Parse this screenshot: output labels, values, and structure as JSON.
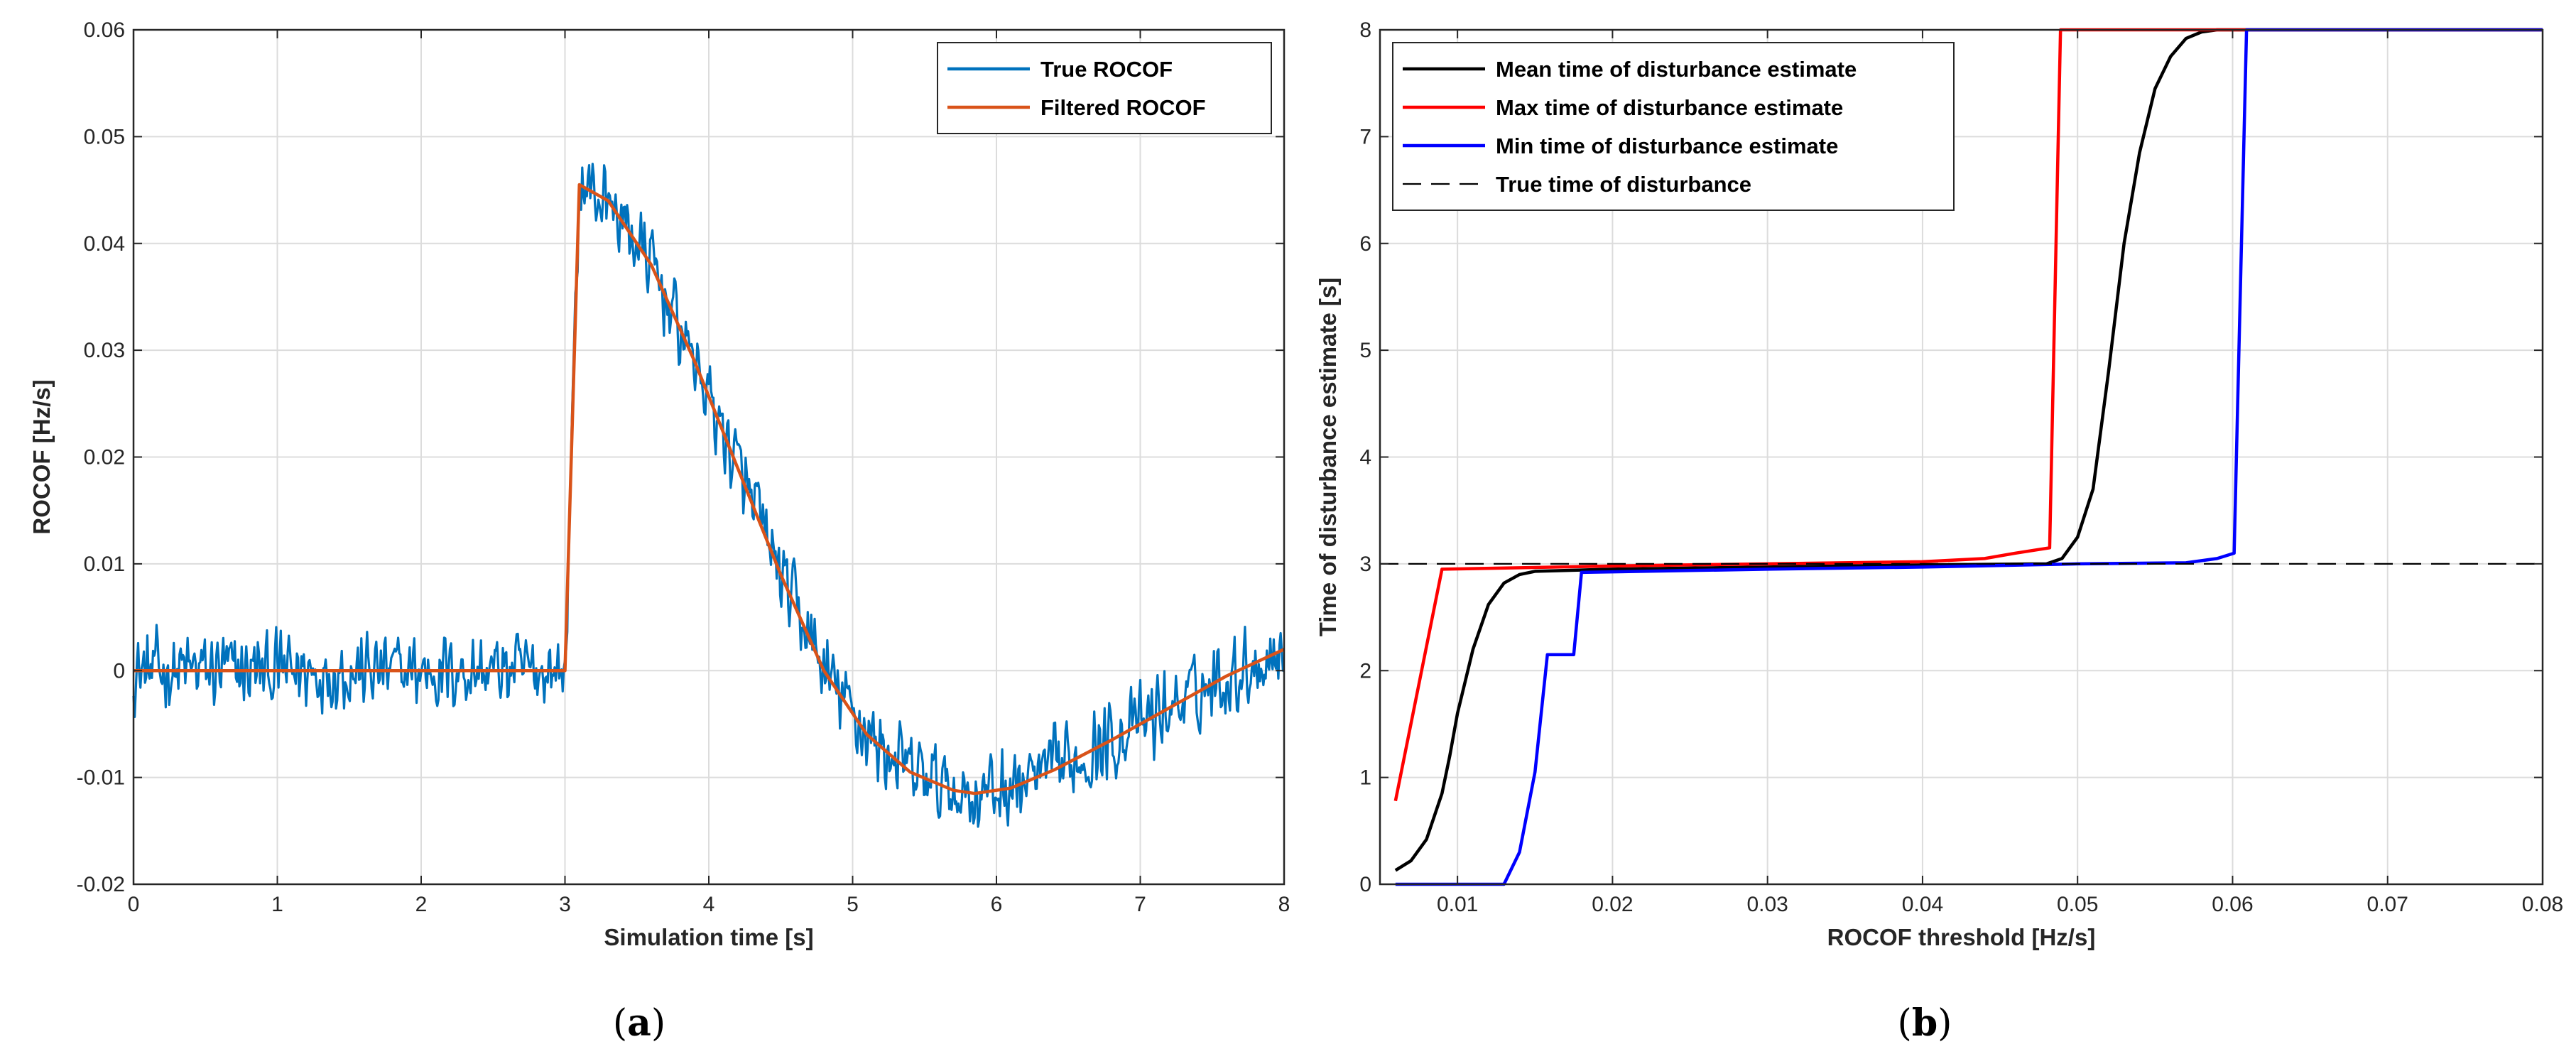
{
  "chart_data": [
    {
      "type": "line",
      "panel": "a",
      "caption_letter": "a",
      "xlabel": "Simulation time [s]",
      "ylabel": "ROCOF [Hz/s]",
      "xlim": [
        0,
        8
      ],
      "ylim": [
        -0.02,
        0.06
      ],
      "xticks": [
        0,
        1,
        2,
        3,
        4,
        5,
        6,
        7,
        8
      ],
      "xtick_labels": [
        "0",
        "1",
        "2",
        "3",
        "4",
        "5",
        "6",
        "7",
        "8"
      ],
      "yticks": [
        -0.02,
        -0.01,
        0,
        0.01,
        0.02,
        0.03,
        0.04,
        0.05,
        0.06
      ],
      "ytick_labels": [
        "-0.02",
        "-0.01",
        "0",
        "0.01",
        "0.02",
        "0.03",
        "0.04",
        "0.05",
        "0.06"
      ],
      "grid": true,
      "legend_position": "top-right",
      "series": [
        {
          "name": "True ROCOF",
          "color": "#0072BD",
          "noise_amplitude": 0.0045,
          "x": [
            0,
            3.0,
            3.1,
            3.3,
            3.6,
            3.9,
            4.2,
            4.5,
            4.8,
            5.1,
            5.4,
            5.7,
            5.85,
            6.1,
            6.4,
            6.8,
            7.2,
            7.6,
            8.0
          ],
          "y": [
            0,
            0,
            0.0455,
            0.044,
            0.038,
            0.029,
            0.019,
            0.009,
            0.0,
            -0.006,
            -0.0095,
            -0.0112,
            -0.0115,
            -0.011,
            -0.0093,
            -0.0065,
            -0.0035,
            -0.0005,
            0.002
          ]
        },
        {
          "name": "Filtered ROCOF",
          "color": "#D95319",
          "noise_amplitude": 0,
          "x": [
            0,
            3.0,
            3.1,
            3.3,
            3.6,
            3.9,
            4.2,
            4.5,
            4.8,
            5.1,
            5.4,
            5.7,
            5.85,
            6.1,
            6.4,
            6.8,
            7.2,
            7.6,
            8.0
          ],
          "y": [
            0,
            0,
            0.0455,
            0.044,
            0.038,
            0.029,
            0.019,
            0.009,
            0.0,
            -0.006,
            -0.0095,
            -0.0112,
            -0.0115,
            -0.011,
            -0.0093,
            -0.0065,
            -0.0035,
            -0.0005,
            0.002
          ]
        }
      ]
    },
    {
      "type": "line",
      "panel": "b",
      "caption_letter": "b",
      "xlabel": "ROCOF threshold [Hz/s]",
      "ylabel": "Time of disturbance estimate [s]",
      "xlim": [
        0.005,
        0.08
      ],
      "ylim": [
        0,
        8
      ],
      "xticks": [
        0.01,
        0.02,
        0.03,
        0.04,
        0.05,
        0.06,
        0.07,
        0.08
      ],
      "xtick_labels": [
        "0.01",
        "0.02",
        "0.03",
        "0.04",
        "0.05",
        "0.06",
        "0.07",
        "0.08"
      ],
      "yticks": [
        0,
        1,
        2,
        3,
        4,
        5,
        6,
        7,
        8
      ],
      "ytick_labels": [
        "0",
        "1",
        "2",
        "3",
        "4",
        "5",
        "6",
        "7",
        "8"
      ],
      "grid": true,
      "legend_position": "top-left",
      "series": [
        {
          "name": "Mean time of disturbance estimate",
          "color": "#000000",
          "dashed": false,
          "x": [
            0.006,
            0.007,
            0.008,
            0.009,
            0.0095,
            0.01,
            0.011,
            0.012,
            0.013,
            0.014,
            0.015,
            0.02,
            0.03,
            0.04,
            0.048,
            0.049,
            0.05,
            0.051,
            0.052,
            0.053,
            0.054,
            0.055,
            0.056,
            0.057,
            0.058,
            0.059,
            0.08
          ],
          "y": [
            0.13,
            0.22,
            0.42,
            0.85,
            1.2,
            1.6,
            2.2,
            2.62,
            2.82,
            2.9,
            2.93,
            2.95,
            2.97,
            2.99,
            3.0,
            3.05,
            3.25,
            3.7,
            4.8,
            6.0,
            6.85,
            7.45,
            7.75,
            7.92,
            7.98,
            8.0,
            8.0
          ]
        },
        {
          "name": "Max time of disturbance estimate",
          "color": "#FF0000",
          "dashed": false,
          "x": [
            0.006,
            0.009,
            0.02,
            0.03,
            0.04,
            0.044,
            0.046,
            0.0482,
            0.0489,
            0.08
          ],
          "y": [
            0.78,
            2.95,
            2.98,
            3.0,
            3.02,
            3.05,
            3.1,
            3.15,
            8.0,
            8.0
          ],
          "x_end": 0.061
        },
        {
          "name": "Min time of disturbance estimate",
          "color": "#0000FF",
          "dashed": false,
          "x": [
            0.006,
            0.013,
            0.014,
            0.015,
            0.0158,
            0.0165,
            0.0175,
            0.018,
            0.03,
            0.04,
            0.05,
            0.057,
            0.059,
            0.0601,
            0.0609,
            0.08
          ],
          "y": [
            0.0,
            0.0,
            0.3,
            1.05,
            2.15,
            2.15,
            2.15,
            2.92,
            2.95,
            2.97,
            3.0,
            3.01,
            3.05,
            3.1,
            8.0,
            8.0
          ]
        },
        {
          "name": "True time of disturbance",
          "color": "#000000",
          "dashed": true,
          "x": [
            0.005,
            0.08
          ],
          "y": [
            3.0,
            3.0
          ]
        }
      ]
    }
  ]
}
